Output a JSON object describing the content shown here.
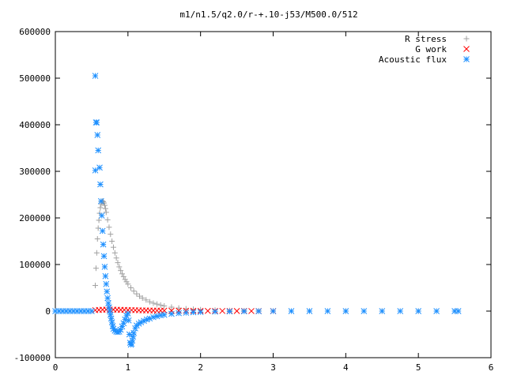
{
  "chart_data": {
    "type": "scatter",
    "title": "m1/n1.5/q2.0/r-+.10-j53/M500.0/512",
    "xlabel": "",
    "ylabel": "",
    "xlim": [
      0,
      6
    ],
    "ylim": [
      -100000,
      600000
    ],
    "xticks": [
      "0",
      "1",
      "2",
      "3",
      "4",
      "5",
      "6"
    ],
    "yticks": [
      "-100000",
      "0",
      "100000",
      "200000",
      "300000",
      "400000",
      "500000",
      "600000"
    ],
    "grid": false,
    "legend_position": "top-right",
    "series": [
      {
        "name": "R stress",
        "marker": "plus",
        "color": "#a0a0a0",
        "points": [
          [
            0.55,
            55000
          ],
          [
            0.56,
            92000
          ],
          [
            0.57,
            125000
          ],
          [
            0.58,
            155000
          ],
          [
            0.59,
            178000
          ],
          [
            0.6,
            195000
          ],
          [
            0.61,
            210000
          ],
          [
            0.62,
            222000
          ],
          [
            0.63,
            230000
          ],
          [
            0.64,
            234000
          ],
          [
            0.65,
            236000
          ],
          [
            0.66,
            235000
          ],
          [
            0.67,
            232000
          ],
          [
            0.68,
            227000
          ],
          [
            0.69,
            220000
          ],
          [
            0.7,
            212000
          ],
          [
            0.72,
            196000
          ],
          [
            0.74,
            180000
          ],
          [
            0.76,
            165000
          ],
          [
            0.78,
            150000
          ],
          [
            0.8,
            137000
          ],
          [
            0.82,
            125000
          ],
          [
            0.84,
            114000
          ],
          [
            0.86,
            104000
          ],
          [
            0.88,
            95000
          ],
          [
            0.9,
            87000
          ],
          [
            0.92,
            80000
          ],
          [
            0.94,
            74000
          ],
          [
            0.96,
            68000
          ],
          [
            0.98,
            63000
          ],
          [
            1.0,
            58000
          ],
          [
            1.04,
            50000
          ],
          [
            1.08,
            43000
          ],
          [
            1.12,
            37000
          ],
          [
            1.16,
            32000
          ],
          [
            1.2,
            28000
          ],
          [
            1.25,
            24000
          ],
          [
            1.3,
            20000
          ],
          [
            1.35,
            17000
          ],
          [
            1.4,
            15000
          ],
          [
            1.45,
            13000
          ],
          [
            1.5,
            11000
          ],
          [
            1.6,
            8500
          ],
          [
            1.7,
            6500
          ],
          [
            1.8,
            5000
          ],
          [
            1.9,
            4000
          ],
          [
            2.0,
            3000
          ],
          [
            2.2,
            2000
          ],
          [
            2.4,
            1300
          ],
          [
            2.6,
            800
          ],
          [
            2.8,
            500
          ],
          [
            3.0,
            300
          ],
          [
            3.5,
            100
          ],
          [
            4.0,
            50
          ],
          [
            4.5,
            20
          ],
          [
            5.0,
            10
          ],
          [
            5.5,
            0
          ]
        ]
      },
      {
        "name": "G work",
        "marker": "cross",
        "color": "#ff0000",
        "points": [
          [
            0.55,
            2000
          ],
          [
            0.6,
            2500
          ],
          [
            0.65,
            3000
          ],
          [
            0.7,
            3200
          ],
          [
            0.75,
            3300
          ],
          [
            0.8,
            3200
          ],
          [
            0.85,
            3000
          ],
          [
            0.9,
            2800
          ],
          [
            0.95,
            2600
          ],
          [
            1.0,
            2400
          ],
          [
            1.05,
            2200
          ],
          [
            1.1,
            2000
          ],
          [
            1.15,
            1800
          ],
          [
            1.2,
            1600
          ],
          [
            1.25,
            1500
          ],
          [
            1.3,
            1400
          ],
          [
            1.35,
            1300
          ],
          [
            1.4,
            1200
          ],
          [
            1.45,
            1100
          ],
          [
            1.5,
            1000
          ],
          [
            1.6,
            900
          ],
          [
            1.7,
            800
          ],
          [
            1.8,
            700
          ],
          [
            1.9,
            600
          ],
          [
            2.0,
            500
          ],
          [
            2.1,
            400
          ],
          [
            2.2,
            350
          ],
          [
            2.3,
            300
          ],
          [
            2.4,
            250
          ],
          [
            2.5,
            200
          ],
          [
            2.6,
            150
          ],
          [
            2.7,
            100
          ],
          [
            2.8,
            50
          ],
          [
            3.0,
            0
          ]
        ]
      },
      {
        "name": "Acoustic flux",
        "marker": "star",
        "color": "#1e90ff",
        "points": [
          [
            0.0,
            0
          ],
          [
            0.05,
            0
          ],
          [
            0.1,
            0
          ],
          [
            0.15,
            0
          ],
          [
            0.2,
            0
          ],
          [
            0.25,
            0
          ],
          [
            0.3,
            0
          ],
          [
            0.35,
            0
          ],
          [
            0.4,
            0
          ],
          [
            0.45,
            0
          ],
          [
            0.5,
            0
          ],
          [
            0.55,
            505000
          ],
          [
            0.56,
            405000
          ],
          [
            0.57,
            405000
          ],
          [
            0.58,
            378000
          ],
          [
            0.59,
            345000
          ],
          [
            0.55,
            302000
          ],
          [
            0.61,
            308000
          ],
          [
            0.62,
            272000
          ],
          [
            0.63,
            236000
          ],
          [
            0.64,
            205000
          ],
          [
            0.65,
            172000
          ],
          [
            0.66,
            143000
          ],
          [
            0.67,
            118000
          ],
          [
            0.68,
            95000
          ],
          [
            0.69,
            75000
          ],
          [
            0.7,
            58000
          ],
          [
            0.71,
            42000
          ],
          [
            0.72,
            28000
          ],
          [
            0.73,
            17000
          ],
          [
            0.74,
            8000
          ],
          [
            0.75,
            0
          ],
          [
            0.76,
            -8000
          ],
          [
            0.77,
            -16000
          ],
          [
            0.78,
            -24000
          ],
          [
            0.79,
            -32000
          ],
          [
            0.8,
            -38000
          ],
          [
            0.82,
            -42000
          ],
          [
            0.84,
            -44000
          ],
          [
            0.86,
            -45000
          ],
          [
            0.88,
            -44000
          ],
          [
            0.9,
            -40000
          ],
          [
            0.92,
            -33000
          ],
          [
            0.94,
            -26000
          ],
          [
            0.96,
            -18000
          ],
          [
            0.98,
            -10000
          ],
          [
            1.0,
            -5000
          ],
          [
            1.01,
            -20000
          ],
          [
            1.02,
            -50000
          ],
          [
            1.03,
            -68000
          ],
          [
            1.04,
            -72000
          ],
          [
            1.05,
            -70000
          ],
          [
            1.06,
            -63000
          ],
          [
            1.07,
            -55000
          ],
          [
            1.08,
            -47000
          ],
          [
            1.1,
            -37000
          ],
          [
            1.12,
            -31000
          ],
          [
            1.15,
            -27000
          ],
          [
            1.18,
            -24000
          ],
          [
            1.22,
            -21000
          ],
          [
            1.26,
            -18000
          ],
          [
            1.3,
            -16000
          ],
          [
            1.35,
            -13000
          ],
          [
            1.4,
            -11000
          ],
          [
            1.45,
            -9000
          ],
          [
            1.5,
            -8000
          ],
          [
            1.6,
            -6000
          ],
          [
            1.7,
            -4500
          ],
          [
            1.8,
            -3500
          ],
          [
            1.9,
            -2500
          ],
          [
            2.0,
            -2000
          ],
          [
            2.2,
            -1200
          ],
          [
            2.4,
            -700
          ],
          [
            2.6,
            -400
          ],
          [
            2.8,
            -200
          ],
          [
            3.0,
            -100
          ],
          [
            3.25,
            0
          ],
          [
            3.5,
            0
          ],
          [
            3.75,
            0
          ],
          [
            4.0,
            0
          ],
          [
            4.25,
            0
          ],
          [
            4.5,
            0
          ],
          [
            4.75,
            0
          ],
          [
            5.0,
            0
          ],
          [
            5.25,
            0
          ],
          [
            5.5,
            0
          ],
          [
            5.55,
            0
          ]
        ]
      }
    ]
  }
}
